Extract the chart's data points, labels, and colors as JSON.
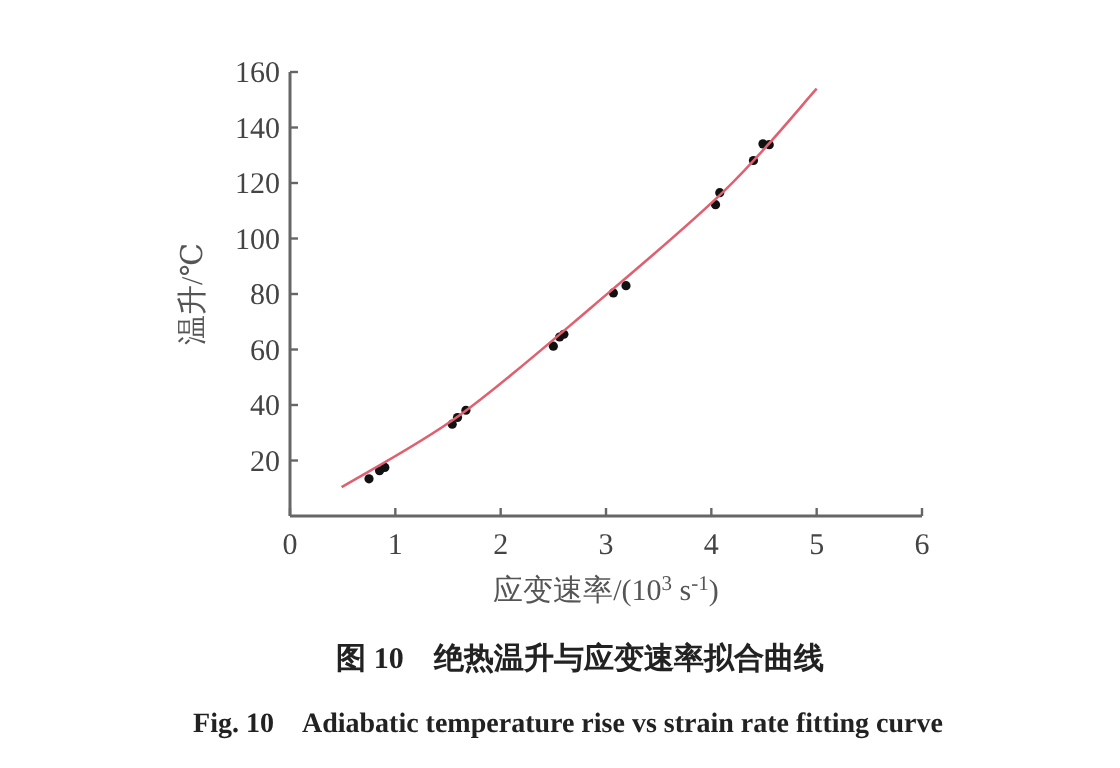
{
  "chart_data": {
    "type": "scatter",
    "title": "图 10　绝热温升与应变速率拟合曲线",
    "subtitle": "Fig. 10　Adiabatic temperature rise vs strain rate fitting curve",
    "xlabel": "应变速率/(10$^{3}$ s$^{-1}$)",
    "ylabel": "温升/℃",
    "xlim": [
      0,
      6
    ],
    "ylim": [
      0,
      160
    ],
    "xticks": [
      0,
      1,
      2,
      3,
      4,
      5,
      6
    ],
    "yticks": [
      20,
      40,
      60,
      80,
      100,
      120,
      140,
      160
    ],
    "grid": false,
    "marker": "circle",
    "series": [
      {
        "type": "scatter",
        "color": "#111111",
        "x": [
          0.75,
          0.85,
          0.9,
          1.54,
          1.59,
          1.67,
          2.5,
          2.56,
          2.6,
          3.07,
          3.19,
          4.04,
          4.08,
          4.4,
          4.49,
          4.55
        ],
        "values": [
          13.4,
          16.3,
          17.5,
          33.1,
          35.5,
          38.1,
          61.2,
          64.5,
          65.5,
          80.4,
          83.0,
          112.2,
          116.5,
          128.1,
          134.1,
          133.8
        ]
      },
      {
        "type": "line",
        "color": "#e06070",
        "line_style": "solid",
        "marker": "none",
        "x": [
          0.49,
          1.61,
          2.88,
          4.14,
          5.0
        ],
        "values": [
          10.4,
          36.3,
          75.8,
          117.8,
          154
        ]
      }
    ]
  }
}
